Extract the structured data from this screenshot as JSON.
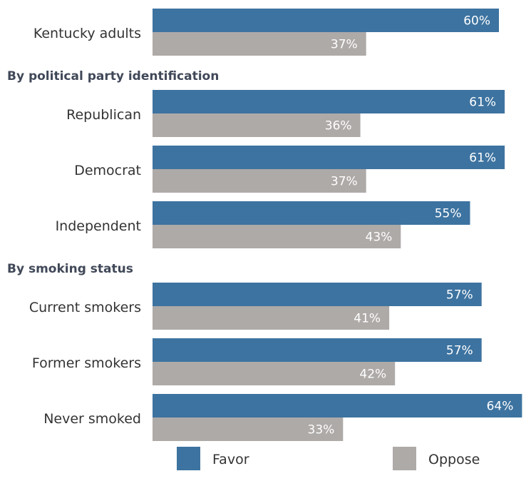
{
  "chart_data": {
    "type": "bar",
    "orientation": "horizontal",
    "xlim": [
      0,
      64
    ],
    "grid": false,
    "legend": "bottom",
    "series": [
      {
        "name": "Favor",
        "color": "#3d73a0"
      },
      {
        "name": "Oppose",
        "color": "#aeaaa8"
      }
    ],
    "groups": [
      {
        "header": "",
        "rows": [
          {
            "label": "Kentucky adults",
            "values": [
              60,
              37
            ],
            "value_labels": [
              "60%",
              "37%"
            ]
          }
        ]
      },
      {
        "header": "By political party identification",
        "rows": [
          {
            "label": "Republican",
            "values": [
              61,
              36
            ],
            "value_labels": [
              "61%",
              "36%"
            ]
          },
          {
            "label": "Democrat",
            "values": [
              61,
              37
            ],
            "value_labels": [
              "61%",
              "37%"
            ]
          },
          {
            "label": "Independent",
            "values": [
              55,
              43
            ],
            "value_labels": [
              "55%",
              "43%"
            ]
          }
        ]
      },
      {
        "header": "By smoking status",
        "rows": [
          {
            "label": "Current smokers",
            "values": [
              57,
              41
            ],
            "value_labels": [
              "57%",
              "41%"
            ]
          },
          {
            "label": "Former smokers",
            "values": [
              57,
              42
            ],
            "value_labels": [
              "57%",
              "42%"
            ]
          },
          {
            "label": "Never smoked",
            "values": [
              64,
              33
            ],
            "value_labels": [
              "64%",
              "33%"
            ]
          }
        ]
      }
    ]
  }
}
